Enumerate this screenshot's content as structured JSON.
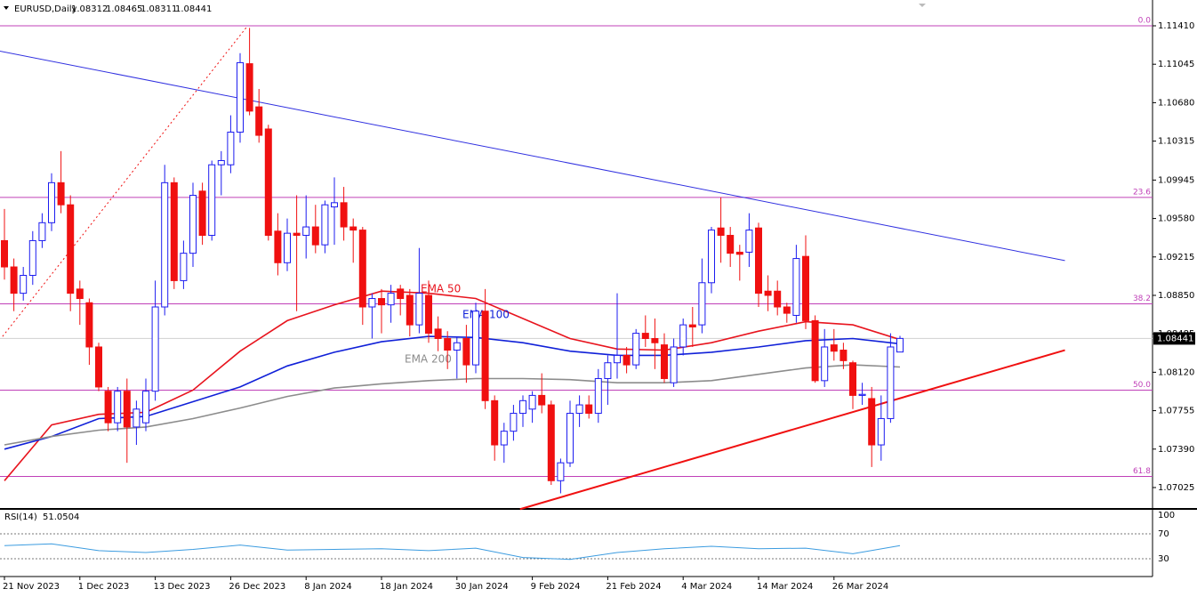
{
  "chart_data": {
    "type": "candlestick",
    "symbol": "EURUSD,Daily",
    "categories": [
      "21 Nov 2023",
      null,
      null,
      null,
      null,
      null,
      null,
      null,
      "1 Dec 2023",
      null,
      null,
      null,
      null,
      null,
      null,
      null,
      "13 Dec 2023",
      null,
      null,
      null,
      null,
      null,
      null,
      null,
      "26 Dec 2023",
      null,
      null,
      null,
      null,
      null,
      null,
      null,
      "8 Jan 2024",
      null,
      null,
      null,
      null,
      null,
      null,
      null,
      "18 Jan 2024",
      null,
      null,
      null,
      null,
      null,
      null,
      null,
      "30 Jan 2024",
      null,
      null,
      null,
      null,
      null,
      null,
      null,
      "9 Feb 2024",
      null,
      null,
      null,
      null,
      null,
      null,
      null,
      "21 Feb 2024",
      null,
      null,
      null,
      null,
      null,
      null,
      null,
      "4 Mar 2024",
      null,
      null,
      null,
      null,
      null,
      null,
      null,
      "14 Mar 2024",
      null,
      null,
      null,
      null,
      null,
      null,
      null,
      "26 Mar 2024",
      null,
      null,
      null,
      null,
      null,
      null,
      null
    ],
    "ohlc": [
      [
        1.0937,
        1.0967,
        1.09,
        1.0912
      ],
      [
        1.0912,
        1.092,
        1.087,
        1.0887
      ],
      [
        1.0887,
        1.0912,
        1.088,
        1.0904
      ],
      [
        1.0904,
        1.0946,
        1.0895,
        1.0937
      ],
      [
        1.0937,
        1.0963,
        1.093,
        1.0954
      ],
      [
        1.0954,
        1.1001,
        1.0946,
        1.0992
      ],
      [
        1.0992,
        1.1022,
        1.0963,
        1.0971
      ],
      [
        1.0971,
        1.098,
        1.087,
        1.0887
      ],
      [
        1.0891,
        1.0899,
        1.0857,
        1.0882
      ],
      [
        1.0878,
        1.0882,
        1.0819,
        1.0836
      ],
      [
        1.0836,
        1.084,
        1.0794,
        1.0798
      ],
      [
        1.0794,
        1.0798,
        1.0756,
        1.0764
      ],
      [
        1.0764,
        1.0798,
        1.0756,
        1.0794
      ],
      [
        1.0794,
        1.0806,
        1.0726,
        1.076
      ],
      [
        1.076,
        1.0785,
        1.0743,
        1.0777
      ],
      [
        1.0764,
        1.0806,
        1.0756,
        1.0794
      ],
      [
        1.0794,
        1.0899,
        1.0785,
        1.0874
      ],
      [
        1.0874,
        1.1009,
        1.0866,
        1.0992
      ],
      [
        1.0992,
        1.0997,
        1.0891,
        1.0899
      ],
      [
        1.0899,
        1.0937,
        1.0891,
        1.0925
      ],
      [
        1.0925,
        1.0992,
        1.0912,
        1.098
      ],
      [
        1.0984,
        1.0992,
        1.0933,
        1.0942
      ],
      [
        1.0942,
        1.1013,
        1.0937,
        1.1009
      ],
      [
        1.1009,
        1.1022,
        1.098,
        1.1013
      ],
      [
        1.1009,
        1.1056,
        1.1001,
        1.104
      ],
      [
        1.104,
        1.1115,
        1.103,
        1.1106
      ],
      [
        1.1105,
        1.1139,
        1.1056,
        1.106
      ],
      [
        1.1064,
        1.1081,
        1.103,
        1.1037
      ],
      [
        1.1043,
        1.1047,
        1.0937,
        1.0942
      ],
      [
        1.0946,
        1.0963,
        1.0904,
        1.0916
      ],
      [
        1.0916,
        1.0958,
        1.0908,
        1.0944
      ],
      [
        1.0944,
        1.098,
        1.087,
        1.0942
      ],
      [
        1.0942,
        1.098,
        1.092,
        1.095
      ],
      [
        1.095,
        1.0971,
        1.0925,
        1.0933
      ],
      [
        1.0933,
        1.0975,
        1.0925,
        1.0971
      ],
      [
        1.0969,
        1.0997,
        1.0933,
        1.0973
      ],
      [
        1.0973,
        1.0988,
        1.0937,
        1.095
      ],
      [
        1.095,
        1.0958,
        1.0916,
        1.0947
      ],
      [
        1.0947,
        1.095,
        1.0857,
        1.0874
      ],
      [
        1.0874,
        1.0887,
        1.0844,
        1.0882
      ],
      [
        1.0882,
        1.0891,
        1.0849,
        1.0876
      ],
      [
        1.0876,
        1.0895,
        1.0859,
        1.0887
      ],
      [
        1.0891,
        1.0895,
        1.0866,
        1.0882
      ],
      [
        1.0885,
        1.0891,
        1.0846,
        1.0857
      ],
      [
        1.0857,
        1.093,
        1.0849,
        1.0887
      ],
      [
        1.0885,
        1.0899,
        1.084,
        1.0849
      ],
      [
        1.0853,
        1.0865,
        1.0832,
        1.0844
      ],
      [
        1.0844,
        1.0851,
        1.0815,
        1.0833
      ],
      [
        1.0833,
        1.0846,
        1.0806,
        1.084
      ],
      [
        1.0844,
        1.0857,
        1.0802,
        1.0819
      ],
      [
        1.0819,
        1.0878,
        1.0811,
        1.087
      ],
      [
        1.087,
        1.0891,
        1.0777,
        1.0785
      ],
      [
        1.0785,
        1.079,
        1.0728,
        1.0743
      ],
      [
        1.0743,
        1.0764,
        1.0726,
        1.0756
      ],
      [
        1.0756,
        1.0781,
        1.0747,
        1.0773
      ],
      [
        1.0773,
        1.079,
        1.076,
        1.0785
      ],
      [
        1.0777,
        1.0794,
        1.0764,
        1.079
      ],
      [
        1.079,
        1.0811,
        1.0773,
        1.0781
      ],
      [
        1.0781,
        1.0785,
        1.0705,
        1.0709
      ],
      [
        1.0709,
        1.073,
        1.0697,
        1.0726
      ],
      [
        1.0726,
        1.0785,
        1.0722,
        1.0773
      ],
      [
        1.0773,
        1.079,
        1.076,
        1.0781
      ],
      [
        1.0781,
        1.079,
        1.0768,
        1.0773
      ],
      [
        1.0773,
        1.0815,
        1.0764,
        1.0806
      ],
      [
        1.0806,
        1.0828,
        1.0781,
        1.0821
      ],
      [
        1.0821,
        1.0887,
        1.0806,
        1.0828
      ],
      [
        1.0828,
        1.0836,
        1.0811,
        1.0819
      ],
      [
        1.0819,
        1.0853,
        1.0815,
        1.0849
      ],
      [
        1.0849,
        1.0866,
        1.0836,
        1.0844
      ],
      [
        1.0844,
        1.0863,
        1.0815,
        1.084
      ],
      [
        1.0838,
        1.0849,
        1.0802,
        1.0806
      ],
      [
        1.0802,
        1.0844,
        1.0798,
        1.0836
      ],
      [
        1.0836,
        1.0863,
        1.0828,
        1.0857
      ],
      [
        1.0857,
        1.0874,
        1.0836,
        1.0855
      ],
      [
        1.0857,
        1.092,
        1.0849,
        1.0897
      ],
      [
        1.0897,
        1.095,
        1.0887,
        1.0947
      ],
      [
        1.0949,
        1.0978,
        1.0916,
        1.0942
      ],
      [
        1.0942,
        1.095,
        1.0912,
        1.0925
      ],
      [
        1.0926,
        1.0933,
        1.0899,
        1.0924
      ],
      [
        1.0926,
        1.0963,
        1.0912,
        1.0947
      ],
      [
        1.0949,
        1.0954,
        1.0874,
        1.0887
      ],
      [
        1.0889,
        1.0904,
        1.087,
        1.0885
      ],
      [
        1.0889,
        1.0899,
        1.0866,
        1.0874
      ],
      [
        1.0874,
        1.0878,
        1.0859,
        1.0868
      ],
      [
        1.0866,
        1.0933,
        1.0859,
        1.092
      ],
      [
        1.0922,
        1.0942,
        1.0853,
        1.0861
      ],
      [
        1.0861,
        1.0866,
        1.0802,
        1.0804
      ],
      [
        1.0804,
        1.0853,
        1.0798,
        1.0836
      ],
      [
        1.0838,
        1.0853,
        1.0823,
        1.0832
      ],
      [
        1.0833,
        1.084,
        1.0815,
        1.0823
      ],
      [
        1.0821,
        1.0823,
        1.0777,
        1.079
      ],
      [
        1.079,
        1.0802,
        1.0781,
        1.0791
      ],
      [
        1.0787,
        1.0798,
        1.0722,
        1.0743
      ],
      [
        1.0743,
        1.079,
        1.0728,
        1.0768
      ],
      [
        1.0768,
        1.0849,
        1.0764,
        1.0836
      ],
      [
        1.08312,
        1.08465,
        1.08311,
        1.08441
      ]
    ],
    "bull_color": "#1c1cf0",
    "bear_color": "#f01010",
    "ylim": [
      1.06822,
      1.11655
    ],
    "yticks": [
      {
        "value": 1.1141,
        "label": "1.11410"
      },
      {
        "value": 1.11045,
        "label": "1.11045"
      },
      {
        "value": 1.1068,
        "label": "1.10680"
      },
      {
        "value": 1.10315,
        "label": "1.10315"
      },
      {
        "value": 1.09945,
        "label": "1.09945"
      },
      {
        "value": 1.0958,
        "label": "1.09580"
      },
      {
        "value": 1.09215,
        "label": "1.09215"
      },
      {
        "value": 1.0885,
        "label": "1.08850"
      },
      {
        "value": 1.08485,
        "label": "1.08485"
      },
      {
        "value": 1.0812,
        "label": "1.08120"
      },
      {
        "value": 1.07755,
        "label": "1.07755"
      },
      {
        "value": 1.0739,
        "label": "1.07390"
      },
      {
        "value": 1.07025,
        "label": "1.07025"
      }
    ],
    "indicators": [
      {
        "name": "EMA 50",
        "color": "#e8141e",
        "x": [
          0,
          5,
          10,
          15,
          20,
          25,
          30,
          35,
          40,
          45,
          50,
          55,
          60,
          65,
          70,
          75,
          80,
          85,
          90,
          95
        ],
        "values": [
          1.0709,
          1.0762,
          1.0772,
          1.0774,
          1.0795,
          1.0832,
          1.0861,
          1.0876,
          1.0889,
          1.0887,
          1.0882,
          1.0863,
          1.0844,
          1.0834,
          1.0833,
          1.084,
          1.0851,
          1.086,
          1.0857,
          1.0843
        ]
      },
      {
        "name": "EMA 100",
        "color": "#1020d8",
        "x": [
          0,
          5,
          10,
          15,
          20,
          25,
          30,
          35,
          40,
          45,
          50,
          55,
          60,
          65,
          70,
          75,
          80,
          85,
          90,
          95
        ],
        "values": [
          1.0739,
          1.0751,
          1.0768,
          1.077,
          1.0784,
          1.0798,
          1.0818,
          1.0831,
          1.0841,
          1.0846,
          1.0845,
          1.084,
          1.0832,
          1.0828,
          1.0828,
          1.0831,
          1.0836,
          1.0842,
          1.0844,
          1.0839
        ]
      },
      {
        "name": "EMA 200",
        "color": "#8c8c8c",
        "x": [
          0,
          5,
          10,
          15,
          20,
          25,
          30,
          35,
          40,
          45,
          50,
          55,
          60,
          65,
          70,
          75,
          80,
          85,
          90,
          95
        ],
        "values": [
          1.0743,
          1.0751,
          1.0757,
          1.076,
          1.0768,
          1.0778,
          1.0789,
          1.0797,
          1.0801,
          1.0804,
          1.0806,
          1.0806,
          1.0805,
          1.0802,
          1.0802,
          1.0804,
          1.081,
          1.0816,
          1.0819,
          1.0817
        ]
      }
    ],
    "trendlines": [
      {
        "color": "#3030e0",
        "style": "solid",
        "points": [
          [
            -0.5,
            1.1117
          ],
          [
            112.5,
            1.0918
          ]
        ]
      },
      {
        "color": "#f01010",
        "style": "solid",
        "points": [
          [
            54.7,
            1.0682
          ],
          [
            112.5,
            1.0833
          ]
        ]
      },
      {
        "color": "#f01010",
        "style": "dotted",
        "points": [
          [
            -0.2,
            1.0846
          ],
          [
            25.8,
            1.1141
          ]
        ]
      }
    ],
    "fib_color": "#c040b8",
    "fib_levels": [
      {
        "label": "0.0",
        "value": 1.1141
      },
      {
        "label": "23.6",
        "value": 1.0978
      },
      {
        "label": "38.2",
        "value": 1.0877
      },
      {
        "label": "50.0",
        "value": 1.0795
      },
      {
        "label": "61.8",
        "value": 1.0713
      }
    ],
    "rsi": {
      "name": "RSI(14)",
      "color": "#3c9ce0",
      "ylim": [
        0,
        100
      ],
      "yticks": [
        100,
        70,
        30
      ],
      "x": [
        0,
        5,
        10,
        15,
        20,
        25,
        30,
        35,
        40,
        45,
        50,
        55,
        60,
        65,
        70,
        75,
        80,
        85,
        90,
        95
      ],
      "values": [
        51,
        54,
        43,
        40,
        45,
        52,
        44,
        45,
        46,
        43,
        47,
        32,
        29,
        40,
        46,
        50,
        46,
        47,
        38,
        51.0504
      ]
    }
  }
}
